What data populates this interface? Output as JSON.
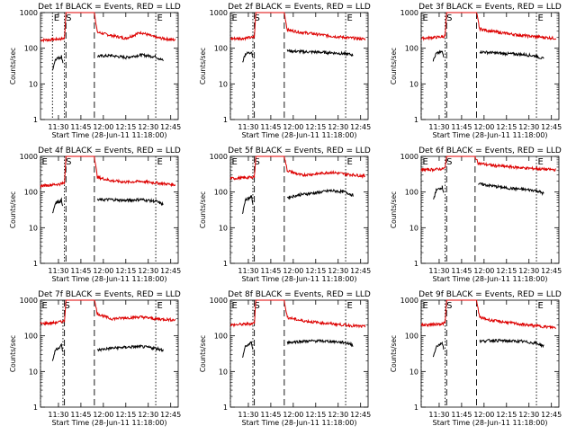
{
  "figure": {
    "background": "#ffffff",
    "events_color": "#000000",
    "lld_color": "#dd0000"
  },
  "chart_data": [
    {
      "type": "line",
      "title": "Det 1f BLACK = Events, RED = LLD",
      "xlabel": "Start Time (28-Jun-11 11:18:00)",
      "ylabel": "Counts/sec",
      "yscale": "log",
      "ylim": [
        1,
        1000
      ],
      "y_ticks": [
        "1",
        "10",
        "100",
        "1000"
      ],
      "x_ticks": [
        "11:30",
        "11:45",
        "12:00",
        "12:15",
        "12:30",
        "12:45"
      ],
      "grid": false,
      "markers": [
        {
          "label": "E",
          "time": "11:26",
          "style": "dotted"
        },
        {
          "label": "S",
          "time": "11:34",
          "style": "dotted"
        },
        {
          "label": "",
          "time": "11:35",
          "style": "dashed"
        },
        {
          "label": "",
          "time": "11:54",
          "style": "dashed"
        },
        {
          "label": "E",
          "time": "12:35",
          "style": "dotted"
        }
      ],
      "series": [
        {
          "name": "LLD",
          "color": "#dd0000",
          "x": [
            "11:18",
            "11:26",
            "11:32",
            "11:34",
            "11:35",
            "11:54",
            "11:56",
            "12:05",
            "12:15",
            "12:25",
            "12:35",
            "12:48"
          ],
          "y": [
            170,
            175,
            185,
            190,
            1000,
            1000,
            280,
            230,
            190,
            280,
            200,
            170
          ]
        },
        {
          "name": "Events",
          "color": "#000000",
          "x": [
            "11:26",
            "11:28",
            "11:31",
            "11:32",
            "11:33",
            "11:34",
            "11:56",
            "12:05",
            "12:15",
            "12:25",
            "12:35",
            "12:40"
          ],
          "y": [
            25,
            50,
            55,
            60,
            40,
            null,
            60,
            62,
            55,
            65,
            58,
            45
          ]
        }
      ]
    },
    {
      "type": "line",
      "title": "Det 2f BLACK = Events, RED = LLD",
      "xlabel": "Start Time (28-Jun-11 11:18:00)",
      "ylabel": "Counts/sec",
      "yscale": "log",
      "ylim": [
        1,
        1000
      ],
      "y_ticks": [
        "1",
        "10",
        "100",
        "1000"
      ],
      "x_ticks": [
        "11:30",
        "11:45",
        "12:00",
        "12:15",
        "12:30",
        "12:45"
      ],
      "grid": false,
      "markers": [
        {
          "label": "E",
          "time": "11:18",
          "style": "dotted"
        },
        {
          "label": "S",
          "time": "11:33",
          "style": "dotted"
        },
        {
          "label": "",
          "time": "11:34",
          "style": "dashed"
        },
        {
          "label": "",
          "time": "11:54",
          "style": "dashed"
        },
        {
          "label": "E",
          "time": "12:35",
          "style": "dotted"
        }
      ],
      "series": [
        {
          "name": "LLD",
          "color": "#dd0000",
          "x": [
            "11:18",
            "11:26",
            "11:32",
            "11:34",
            "11:35",
            "11:54",
            "11:56",
            "12:05",
            "12:15",
            "12:25",
            "12:35",
            "12:48"
          ],
          "y": [
            185,
            190,
            200,
            210,
            1000,
            1000,
            330,
            280,
            250,
            220,
            200,
            180
          ]
        },
        {
          "name": "Events",
          "color": "#000000",
          "x": [
            "11:26",
            "11:28",
            "11:31",
            "11:32",
            "11:33",
            "11:34",
            "11:56",
            "12:05",
            "12:15",
            "12:25",
            "12:35",
            "12:40"
          ],
          "y": [
            40,
            70,
            75,
            80,
            60,
            null,
            85,
            80,
            78,
            75,
            70,
            65
          ]
        }
      ]
    },
    {
      "type": "line",
      "title": "Det 3f BLACK = Events, RED = LLD",
      "xlabel": "Start Time (28-Jun-11 11:18:00)",
      "ylabel": "Counts/sec",
      "yscale": "log",
      "ylim": [
        1,
        1000
      ],
      "y_ticks": [
        "1",
        "10",
        "100",
        "1000"
      ],
      "x_ticks": [
        "11:30",
        "11:45",
        "12:00",
        "12:15",
        "12:30",
        "12:45"
      ],
      "grid": false,
      "markers": [
        {
          "label": "E",
          "time": "11:18",
          "style": "dotted"
        },
        {
          "label": "S",
          "time": "11:34",
          "style": "dotted"
        },
        {
          "label": "",
          "time": "11:35",
          "style": "dashed"
        },
        {
          "label": "",
          "time": "11:55",
          "style": "dashed"
        },
        {
          "label": "E",
          "time": "12:35",
          "style": "dotted"
        }
      ],
      "series": [
        {
          "name": "LLD",
          "color": "#dd0000",
          "x": [
            "11:18",
            "11:26",
            "11:32",
            "11:34",
            "11:35",
            "11:55",
            "11:57",
            "12:05",
            "12:15",
            "12:25",
            "12:35",
            "12:48"
          ],
          "y": [
            190,
            200,
            210,
            220,
            1000,
            1000,
            350,
            300,
            260,
            230,
            210,
            190
          ]
        },
        {
          "name": "Events",
          "color": "#000000",
          "x": [
            "11:26",
            "11:28",
            "11:31",
            "11:32",
            "11:33",
            "11:34",
            "11:57",
            "12:05",
            "12:15",
            "12:25",
            "12:35",
            "12:40"
          ],
          "y": [
            45,
            70,
            78,
            80,
            60,
            null,
            80,
            75,
            70,
            68,
            60,
            50
          ]
        }
      ]
    },
    {
      "type": "line",
      "title": "Det 4f BLACK = Events, RED = LLD",
      "xlabel": "Start Time (28-Jun-11 11:18:00)",
      "ylabel": "Counts/sec",
      "yscale": "log",
      "ylim": [
        1,
        1000
      ],
      "y_ticks": [
        "1",
        "10",
        "100",
        "1000"
      ],
      "x_ticks": [
        "11:30",
        "11:45",
        "12:00",
        "12:15",
        "12:30",
        "12:45"
      ],
      "grid": false,
      "markers": [
        {
          "label": "E",
          "time": "11:18",
          "style": "dotted"
        },
        {
          "label": "S",
          "time": "11:34",
          "style": "dotted"
        },
        {
          "label": "",
          "time": "11:35",
          "style": "dashed"
        },
        {
          "label": "",
          "time": "11:54",
          "style": "dashed"
        },
        {
          "label": "E",
          "time": "12:35",
          "style": "dotted"
        }
      ],
      "series": [
        {
          "name": "LLD",
          "color": "#dd0000",
          "x": [
            "11:18",
            "11:26",
            "11:32",
            "11:34",
            "11:35",
            "11:54",
            "11:56",
            "12:05",
            "12:15",
            "12:25",
            "12:35",
            "12:48"
          ],
          "y": [
            150,
            160,
            170,
            180,
            1000,
            1000,
            260,
            210,
            190,
            200,
            180,
            160
          ]
        },
        {
          "name": "Events",
          "color": "#000000",
          "x": [
            "11:26",
            "11:28",
            "11:31",
            "11:32",
            "11:33",
            "11:34",
            "11:56",
            "12:05",
            "12:15",
            "12:25",
            "12:35",
            "12:40"
          ],
          "y": [
            25,
            50,
            55,
            60,
            40,
            null,
            60,
            62,
            58,
            62,
            55,
            45
          ]
        }
      ]
    },
    {
      "type": "line",
      "title": "Det 5f BLACK = Events, RED = LLD",
      "xlabel": "Start Time (28-Jun-11 11:18:00)",
      "ylabel": "Counts/sec",
      "yscale": "log",
      "ylim": [
        1,
        1000
      ],
      "y_ticks": [
        "1",
        "10",
        "100",
        "1000"
      ],
      "x_ticks": [
        "11:30",
        "11:45",
        "12:00",
        "12:15",
        "12:30",
        "12:45"
      ],
      "grid": false,
      "markers": [
        {
          "label": "E",
          "time": "11:18",
          "style": "dotted"
        },
        {
          "label": "S",
          "time": "11:33",
          "style": "dotted"
        },
        {
          "label": "",
          "time": "11:34",
          "style": "dashed"
        },
        {
          "label": "",
          "time": "11:54",
          "style": "dashed"
        },
        {
          "label": "E",
          "time": "12:35",
          "style": "dotted"
        }
      ],
      "series": [
        {
          "name": "LLD",
          "color": "#dd0000",
          "x": [
            "11:18",
            "11:26",
            "11:32",
            "11:34",
            "11:35",
            "11:54",
            "11:56",
            "12:05",
            "12:15",
            "12:25",
            "12:35",
            "12:48"
          ],
          "y": [
            240,
            250,
            260,
            270,
            1000,
            1000,
            400,
            300,
            320,
            360,
            320,
            280
          ]
        },
        {
          "name": "Events",
          "color": "#000000",
          "x": [
            "11:26",
            "11:28",
            "11:31",
            "11:32",
            "11:33",
            "11:34",
            "11:56",
            "12:05",
            "12:15",
            "12:25",
            "12:35",
            "12:40"
          ],
          "y": [
            25,
            60,
            70,
            75,
            50,
            null,
            70,
            85,
            95,
            110,
            100,
            80
          ]
        }
      ]
    },
    {
      "type": "line",
      "title": "Det 6f BLACK = Events, RED = LLD",
      "xlabel": "Start Time (28-Jun-11 11:18:00)",
      "ylabel": "Counts/sec",
      "yscale": "log",
      "ylim": [
        1,
        1000
      ],
      "y_ticks": [
        "1",
        "10",
        "100",
        "1000"
      ],
      "x_ticks": [
        "11:30",
        "11:45",
        "12:00",
        "12:15",
        "12:30",
        "12:45"
      ],
      "grid": false,
      "markers": [
        {
          "label": "E",
          "time": "11:18",
          "style": "dotted"
        },
        {
          "label": "S",
          "time": "11:34",
          "style": "dotted"
        },
        {
          "label": "",
          "time": "11:35",
          "style": "dashed"
        },
        {
          "label": "",
          "time": "11:54",
          "style": "dashed"
        },
        {
          "label": "E",
          "time": "12:35",
          "style": "dotted"
        }
      ],
      "series": [
        {
          "name": "LLD",
          "color": "#dd0000",
          "x": [
            "11:18",
            "11:26",
            "11:32",
            "11:34",
            "11:35",
            "11:54",
            "11:56",
            "12:05",
            "12:15",
            "12:25",
            "12:35",
            "12:48"
          ],
          "y": [
            420,
            430,
            450,
            470,
            1000,
            1000,
            650,
            560,
            520,
            480,
            450,
            420
          ]
        },
        {
          "name": "Events",
          "color": "#000000",
          "x": [
            "11:26",
            "11:28",
            "11:31",
            "11:32",
            "11:33",
            "11:34",
            "11:56",
            "12:05",
            "12:15",
            "12:25",
            "12:35",
            "12:40"
          ],
          "y": [
            60,
            110,
            130,
            140,
            100,
            null,
            170,
            150,
            130,
            120,
            110,
            90
          ]
        }
      ]
    },
    {
      "type": "line",
      "title": "Det 7f BLACK = Events, RED = LLD",
      "xlabel": "Start Time (28-Jun-11 11:18:00)",
      "ylabel": "Counts/sec",
      "yscale": "log",
      "ylim": [
        1,
        1000
      ],
      "y_ticks": [
        "1",
        "10",
        "100",
        "1000"
      ],
      "x_ticks": [
        "11:30",
        "11:45",
        "12:00",
        "12:15",
        "12:30",
        "12:45"
      ],
      "grid": false,
      "markers": [
        {
          "label": "E",
          "time": "11:18",
          "style": "dotted"
        },
        {
          "label": "S",
          "time": "11:33",
          "style": "dotted"
        },
        {
          "label": "",
          "time": "11:34",
          "style": "dashed"
        },
        {
          "label": "",
          "time": "11:54",
          "style": "dashed"
        },
        {
          "label": "E",
          "time": "12:35",
          "style": "dotted"
        }
      ],
      "series": [
        {
          "name": "LLD",
          "color": "#dd0000",
          "x": [
            "11:18",
            "11:26",
            "11:32",
            "11:34",
            "11:35",
            "11:54",
            "11:56",
            "12:05",
            "12:15",
            "12:25",
            "12:35",
            "12:48"
          ],
          "y": [
            220,
            230,
            250,
            260,
            1000,
            1000,
            420,
            300,
            320,
            340,
            300,
            280
          ]
        },
        {
          "name": "Events",
          "color": "#000000",
          "x": [
            "11:26",
            "11:28",
            "11:31",
            "11:32",
            "11:33",
            "11:34",
            "11:56",
            "12:05",
            "12:15",
            "12:25",
            "12:35",
            "12:40"
          ],
          "y": [
            20,
            40,
            50,
            55,
            35,
            null,
            40,
            45,
            48,
            50,
            45,
            40
          ]
        }
      ]
    },
    {
      "type": "line",
      "title": "Det 8f BLACK = Events, RED = LLD",
      "xlabel": "Start Time (28-Jun-11 11:18:00)",
      "ylabel": "Counts/sec",
      "yscale": "log",
      "ylim": [
        1,
        1000
      ],
      "y_ticks": [
        "1",
        "10",
        "100",
        "1000"
      ],
      "x_ticks": [
        "11:30",
        "11:45",
        "12:00",
        "12:15",
        "12:30",
        "12:45"
      ],
      "grid": false,
      "markers": [
        {
          "label": "E",
          "time": "11:18",
          "style": "dotted"
        },
        {
          "label": "S",
          "time": "11:33",
          "style": "dotted"
        },
        {
          "label": "",
          "time": "11:34",
          "style": "dashed"
        },
        {
          "label": "",
          "time": "11:54",
          "style": "dashed"
        },
        {
          "label": "E",
          "time": "12:35",
          "style": "dotted"
        }
      ],
      "series": [
        {
          "name": "LLD",
          "color": "#dd0000",
          "x": [
            "11:18",
            "11:26",
            "11:32",
            "11:34",
            "11:35",
            "11:54",
            "11:56",
            "12:05",
            "12:15",
            "12:25",
            "12:35",
            "12:48"
          ],
          "y": [
            200,
            210,
            220,
            230,
            1000,
            1000,
            330,
            270,
            240,
            220,
            200,
            180
          ]
        },
        {
          "name": "Events",
          "color": "#000000",
          "x": [
            "11:26",
            "11:28",
            "11:31",
            "11:32",
            "11:33",
            "11:34",
            "11:56",
            "12:05",
            "12:15",
            "12:25",
            "12:35",
            "12:40"
          ],
          "y": [
            25,
            50,
            60,
            65,
            45,
            null,
            65,
            70,
            72,
            70,
            65,
            55
          ]
        }
      ]
    },
    {
      "type": "line",
      "title": "Det 9f BLACK = Events, RED = LLD",
      "xlabel": "Start Time (28-Jun-11 11:18:00)",
      "ylabel": "Counts/sec",
      "yscale": "log",
      "ylim": [
        1,
        1000
      ],
      "y_ticks": [
        "1",
        "10",
        "100",
        "1000"
      ],
      "x_ticks": [
        "11:30",
        "11:45",
        "12:00",
        "12:15",
        "12:30",
        "12:45"
      ],
      "grid": false,
      "markers": [
        {
          "label": "E",
          "time": "11:18",
          "style": "dotted"
        },
        {
          "label": "S",
          "time": "11:34",
          "style": "dotted"
        },
        {
          "label": "",
          "time": "11:35",
          "style": "dashed"
        },
        {
          "label": "",
          "time": "11:55",
          "style": "dashed"
        },
        {
          "label": "E",
          "time": "12:35",
          "style": "dotted"
        }
      ],
      "series": [
        {
          "name": "LLD",
          "color": "#dd0000",
          "x": [
            "11:18",
            "11:26",
            "11:32",
            "11:34",
            "11:35",
            "11:55",
            "11:57",
            "12:05",
            "12:15",
            "12:25",
            "12:35",
            "12:48"
          ],
          "y": [
            200,
            210,
            220,
            230,
            1000,
            1000,
            330,
            270,
            240,
            210,
            190,
            170
          ]
        },
        {
          "name": "Events",
          "color": "#000000",
          "x": [
            "11:26",
            "11:28",
            "11:31",
            "11:32",
            "11:33",
            "11:34",
            "11:57",
            "12:05",
            "12:15",
            "12:25",
            "12:35",
            "12:40"
          ],
          "y": [
            25,
            50,
            60,
            65,
            45,
            null,
            70,
            75,
            72,
            70,
            62,
            52
          ]
        }
      ]
    }
  ]
}
